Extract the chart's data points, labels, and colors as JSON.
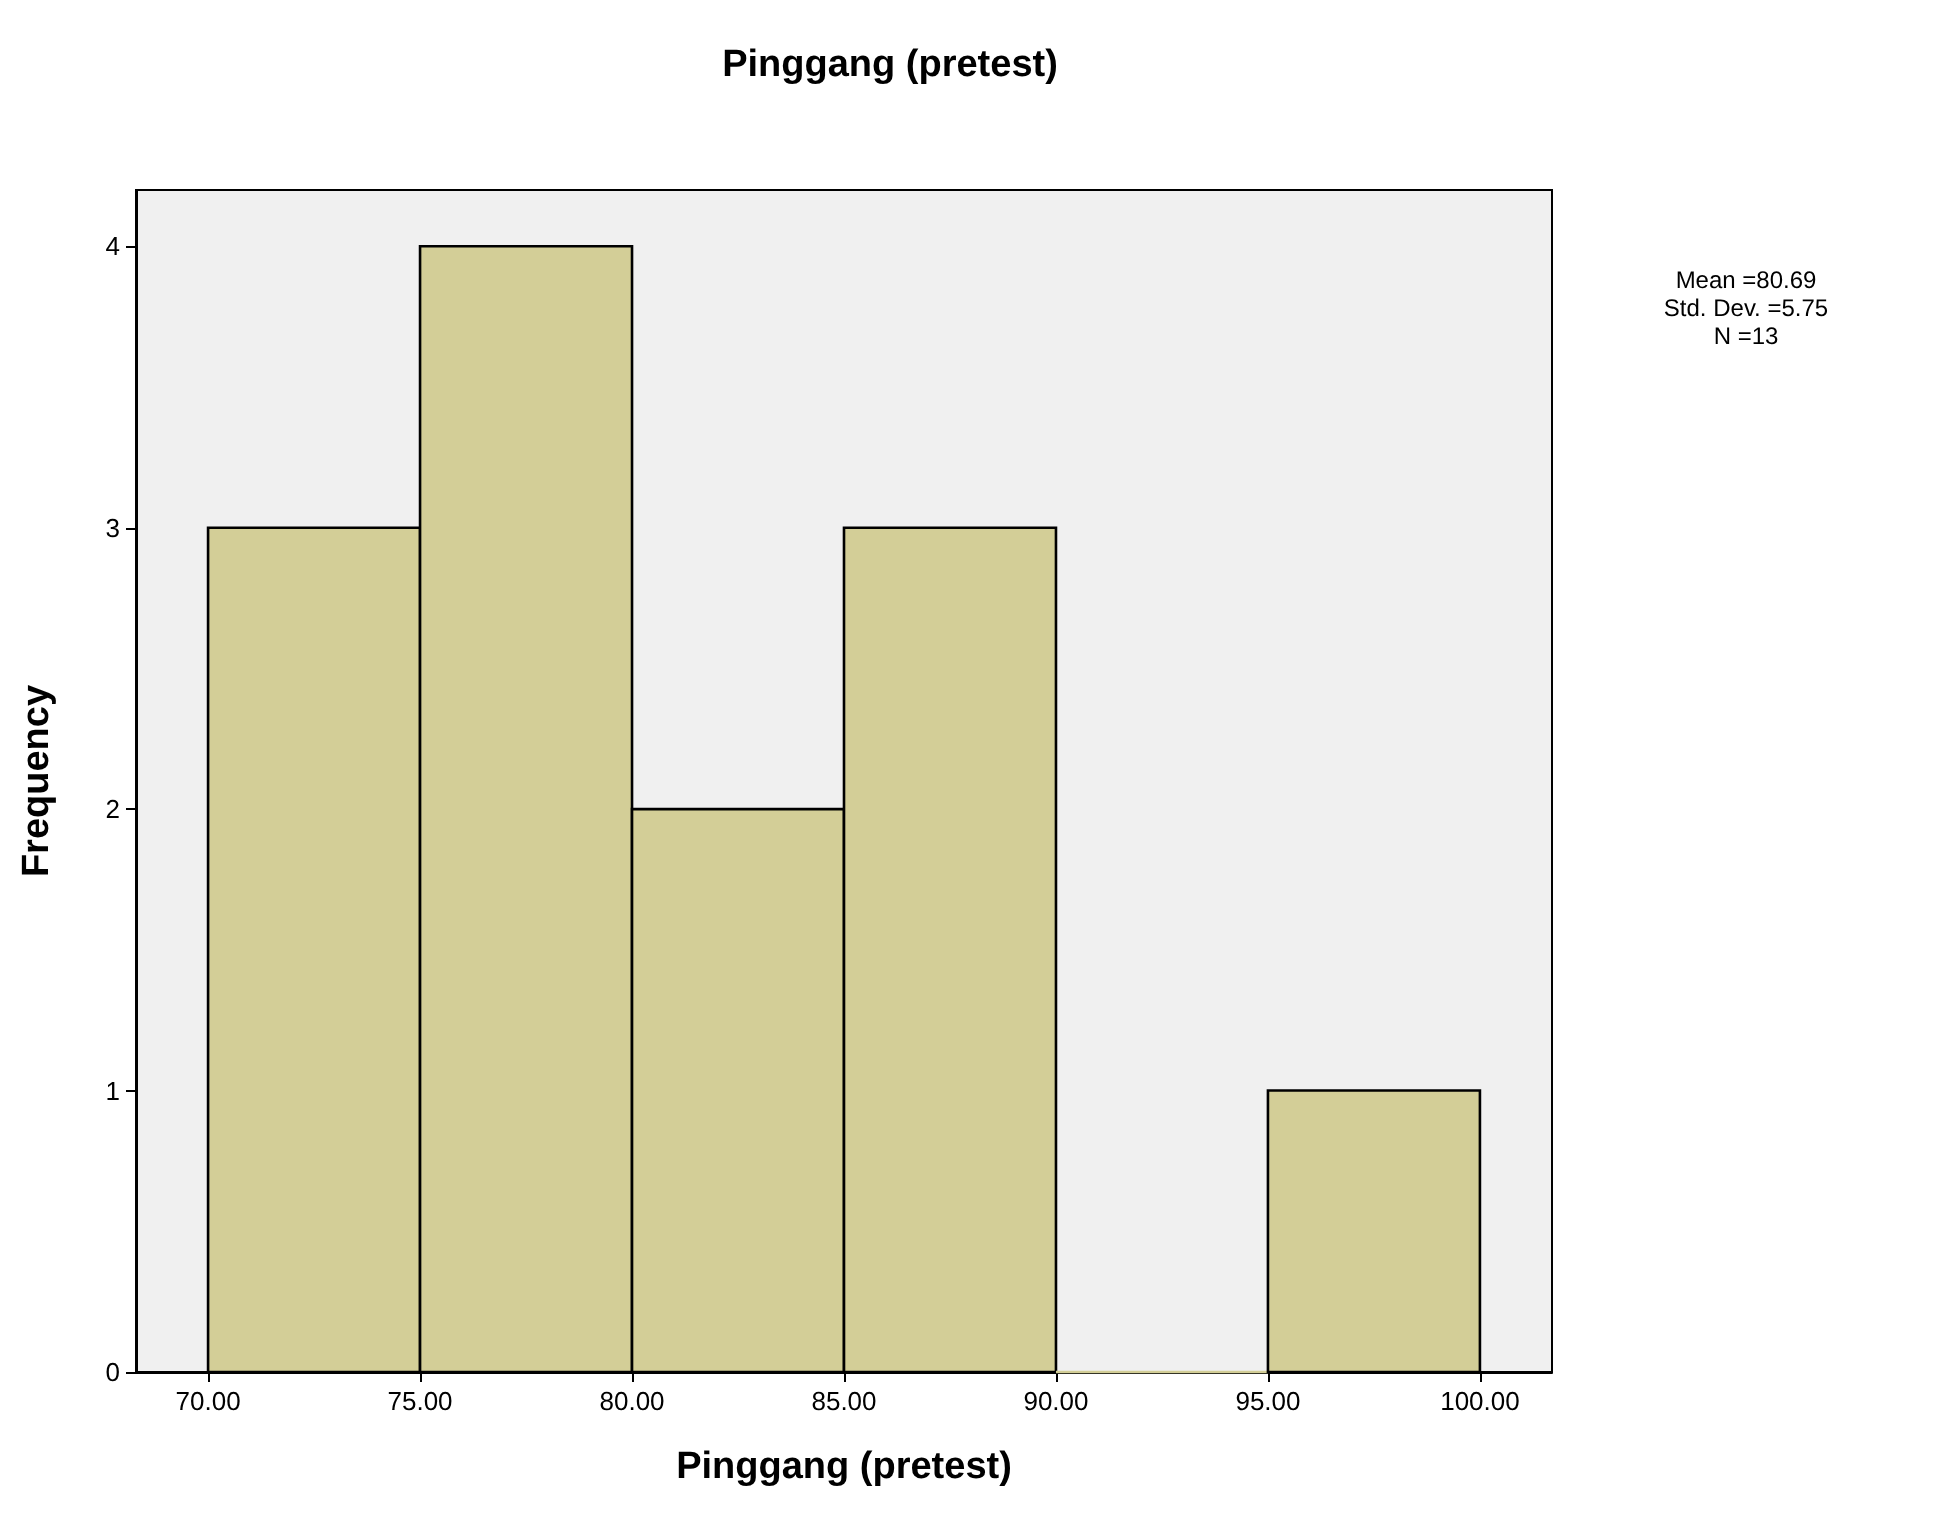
{
  "chart_data": {
    "type": "histogram",
    "title": "Pinggang (pretest)",
    "xlabel": "Pinggang (pretest)",
    "ylabel": "Frequency",
    "bins": [
      70,
      75,
      80,
      85,
      90,
      95,
      100
    ],
    "values": [
      3,
      4,
      2,
      3,
      0,
      1
    ],
    "color": "#d3ce97",
    "xlim": [
      68.3,
      101.7
    ],
    "xticks": [
      {
        "value": 70,
        "label": "70.00"
      },
      {
        "value": 75,
        "label": "75.00"
      },
      {
        "value": 80,
        "label": "80.00"
      },
      {
        "value": 85,
        "label": "85.00"
      },
      {
        "value": 90,
        "label": "90.00"
      },
      {
        "value": 95,
        "label": "95.00"
      },
      {
        "value": 100,
        "label": "100.00"
      }
    ],
    "ylim": [
      0,
      4.2
    ],
    "yticks": [
      0,
      1,
      2,
      3,
      4
    ],
    "grid": false,
    "annotations": [
      "Mean =80.69",
      "Std. Dev. =5.75",
      "N =13"
    ]
  }
}
